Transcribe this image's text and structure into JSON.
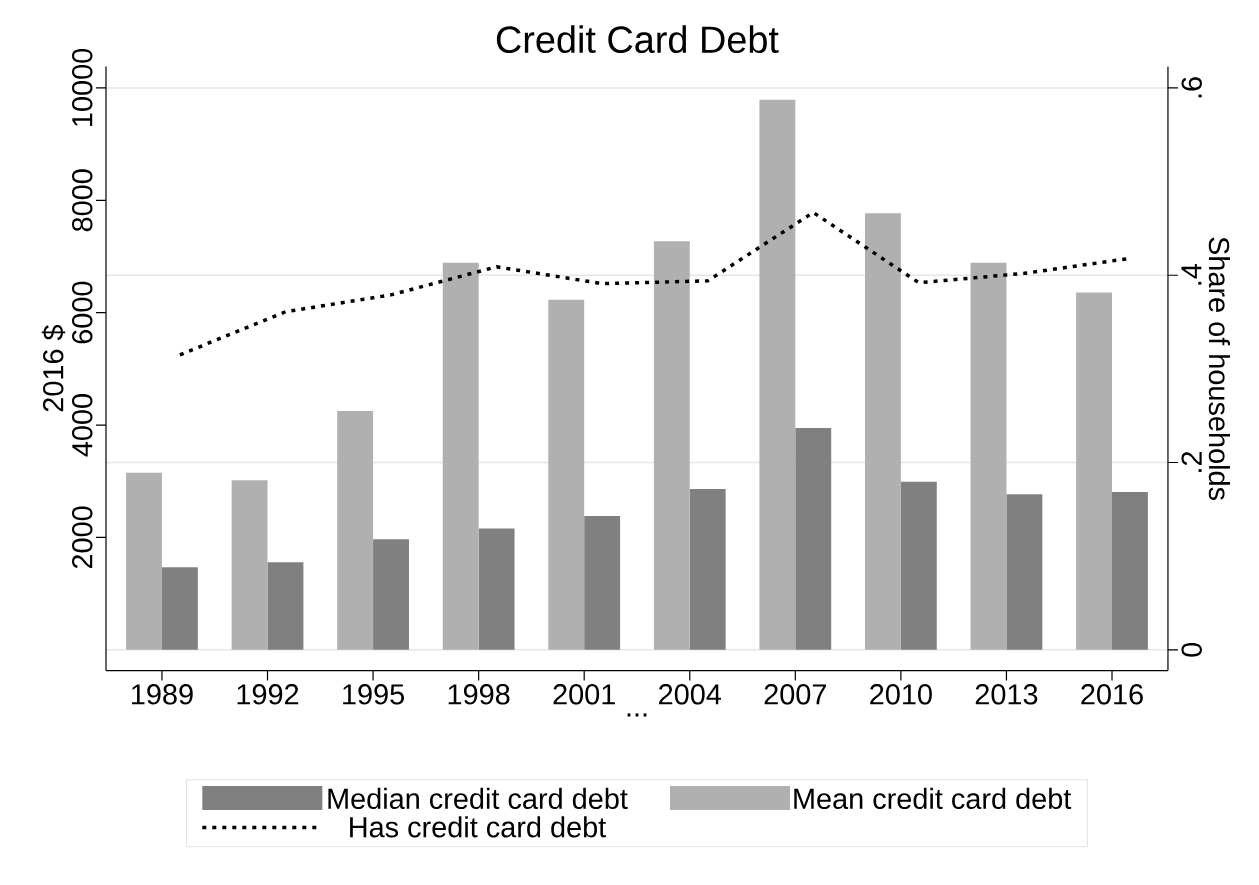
{
  "chart_data": {
    "type": "bar",
    "title": "Credit Card Debt",
    "xlabel": "...",
    "ylabel": "2016 $",
    "y2label": "Share of households",
    "categories": [
      "1989",
      "1992",
      "1995",
      "1998",
      "2001",
      "2004",
      "2007",
      "2010",
      "2013",
      "2016"
    ],
    "series": [
      {
        "name": "Median credit card debt",
        "color": "#808080",
        "values": [
          1470,
          1560,
          1970,
          2160,
          2380,
          2860,
          3950,
          2990,
          2770,
          2810
        ]
      },
      {
        "name": "Mean credit card debt",
        "color": "#b0b0b0",
        "values": [
          3150,
          3020,
          4250,
          6890,
          6230,
          7270,
          9790,
          7770,
          6890,
          6360
        ]
      },
      {
        "name": "Has credit card debt",
        "type": "line",
        "axis": "y2",
        "color": "#000000",
        "line_style": "dotted",
        "values": [
          0.315,
          0.361,
          0.379,
          0.409,
          0.391,
          0.394,
          0.467,
          0.392,
          0.402,
          0.418
        ]
      }
    ],
    "ylim": [
      -370,
      10380
    ],
    "yticks": [
      2000,
      4000,
      6000,
      8000,
      10000
    ],
    "y2lim": [
      -0.0222,
      0.6228
    ],
    "y2ticks": [
      0,
      {
        "value": 0.2,
        "label": ".2"
      },
      {
        "value": 0.4,
        "label": ".4"
      },
      {
        "value": 0.6,
        "label": ".6"
      }
    ],
    "grid": "y2",
    "legend": "bottom",
    "marker": "none"
  }
}
